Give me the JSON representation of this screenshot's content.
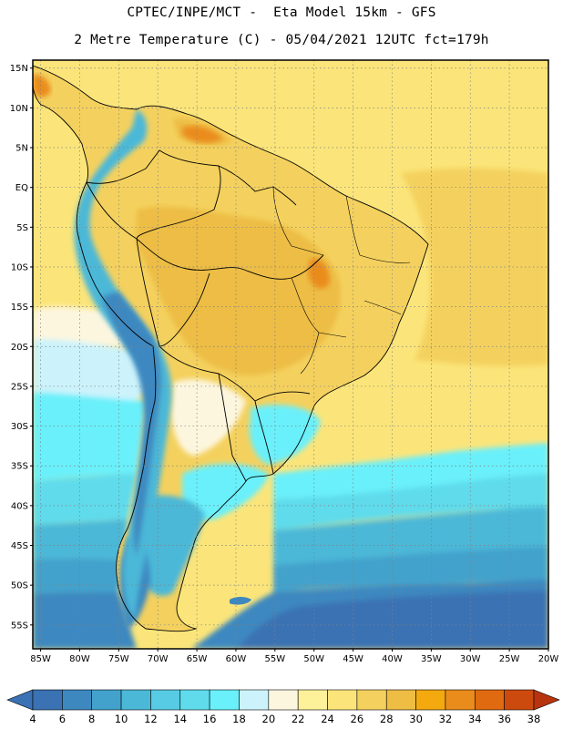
{
  "header": {
    "line1": "CPTEC/INPE/MCT -  Eta Model 15km - GFS",
    "line2": "2 Metre Temperature (C) - 05/04/2021 12UTC fct=179h"
  },
  "map": {
    "lat_range": [
      -58,
      16
    ],
    "lon_range": [
      -86,
      -20
    ],
    "lat_labels": [
      {
        "value": 15,
        "label": "15N"
      },
      {
        "value": 10,
        "label": "10N"
      },
      {
        "value": 5,
        "label": "5N"
      },
      {
        "value": 0,
        "label": "EQ"
      },
      {
        "value": -5,
        "label": "5S"
      },
      {
        "value": -10,
        "label": "10S"
      },
      {
        "value": -15,
        "label": "15S"
      },
      {
        "value": -20,
        "label": "20S"
      },
      {
        "value": -25,
        "label": "25S"
      },
      {
        "value": -30,
        "label": "30S"
      },
      {
        "value": -35,
        "label": "35S"
      },
      {
        "value": -40,
        "label": "40S"
      },
      {
        "value": -45,
        "label": "45S"
      },
      {
        "value": -50,
        "label": "50S"
      },
      {
        "value": -55,
        "label": "55S"
      }
    ],
    "lon_labels": [
      {
        "value": -85,
        "label": "85W"
      },
      {
        "value": -80,
        "label": "80W"
      },
      {
        "value": -75,
        "label": "75W"
      },
      {
        "value": -70,
        "label": "70W"
      },
      {
        "value": -65,
        "label": "65W"
      },
      {
        "value": -60,
        "label": "60W"
      },
      {
        "value": -55,
        "label": "55W"
      },
      {
        "value": -50,
        "label": "50W"
      },
      {
        "value": -45,
        "label": "45W"
      },
      {
        "value": -40,
        "label": "40W"
      },
      {
        "value": -35,
        "label": "35W"
      },
      {
        "value": -30,
        "label": "30W"
      },
      {
        "value": -25,
        "label": "25W"
      },
      {
        "value": -20,
        "label": "20W"
      }
    ]
  },
  "colorbar": {
    "labels": [
      "4",
      "6",
      "8",
      "10",
      "12",
      "14",
      "16",
      "18",
      "20",
      "22",
      "24",
      "26",
      "28",
      "30",
      "32",
      "34",
      "36",
      "38"
    ],
    "low_color": "#3a72b4",
    "high_color": "#b8340e",
    "colors": [
      "#3a72b4",
      "#3e88c0",
      "#43a2cc",
      "#4cb8d8",
      "#57cbe3",
      "#5fdbec",
      "#6af0fa",
      "#ccf3fb",
      "#fdf6de",
      "#fdf19a",
      "#fbe57a",
      "#f4d15e",
      "#edbd44",
      "#f4a90e",
      "#ea8c1c",
      "#df6a10",
      "#cd4a0e"
    ]
  },
  "palette": {
    "ocean_warm": "#fbe57a",
    "ocean_hot": "#f4d15e",
    "land_warm": "#f4d15e",
    "land_hot": "#edbd44",
    "hotspot": "#ea8c1c",
    "cool_cream": "#fdf6de",
    "cool_pale": "#ccf3fb",
    "cyan": "#6af0fa",
    "cyan2": "#5fdbec",
    "blue1": "#4cb8d8",
    "blue2": "#43a2cc",
    "blue3": "#3e88c0",
    "blue4": "#3a72b4",
    "border": "#000000",
    "grid": "#808080"
  }
}
